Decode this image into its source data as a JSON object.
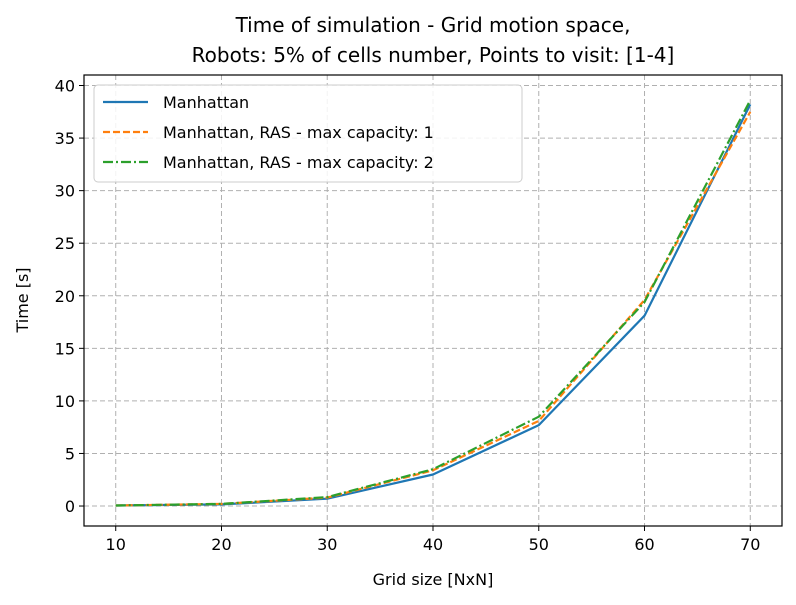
{
  "chart_data": {
    "type": "line",
    "title_line1": "Time of simulation - Grid motion space,",
    "title_line2": "Robots: 5% of cells number, Points to visit: [1-4]",
    "xlabel": "Grid size [NxN]",
    "ylabel": "Time [s]",
    "x": [
      10,
      20,
      30,
      40,
      50,
      60,
      70
    ],
    "xlim": [
      7,
      73
    ],
    "ylim": [
      -1.9,
      41
    ],
    "xticks": [
      10,
      20,
      30,
      40,
      50,
      60,
      70
    ],
    "yticks": [
      0,
      5,
      10,
      15,
      20,
      25,
      30,
      35,
      40
    ],
    "grid": true,
    "legend_position": "upper-left",
    "series": [
      {
        "name": "Manhattan",
        "values": [
          0.05,
          0.15,
          0.7,
          3.0,
          7.7,
          18.1,
          38.2
        ],
        "color": "#1f77b4",
        "style": "solid"
      },
      {
        "name": "Manhattan, RAS - max capacity: 1",
        "values": [
          0.05,
          0.2,
          0.8,
          3.4,
          8.1,
          19.6,
          37.5
        ],
        "color": "#ff7f0e",
        "style": "dashed"
      },
      {
        "name": "Manhattan, RAS - max capacity: 2",
        "values": [
          0.05,
          0.2,
          0.85,
          3.5,
          8.5,
          19.4,
          38.6
        ],
        "color": "#2ca02c",
        "style": "dashdot"
      }
    ]
  }
}
